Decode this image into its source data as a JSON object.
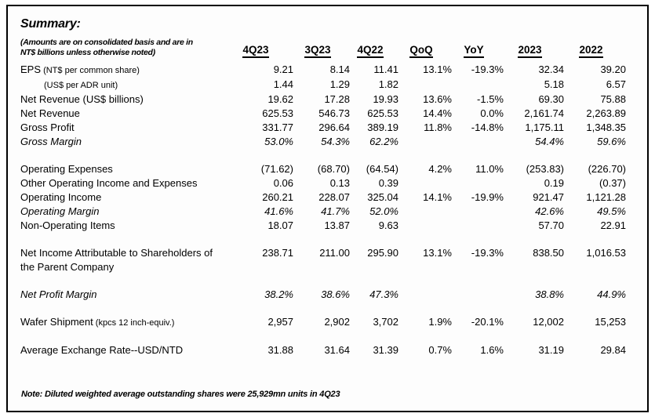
{
  "summary": {
    "title": "Summary:",
    "subtitle_line1": "(Amounts are on consolidated basis and are in",
    "subtitle_line2": "NT$ billions unless otherwise noted)"
  },
  "table": {
    "columns": [
      "4Q23",
      "3Q23",
      "4Q22",
      "QoQ",
      "YoY",
      "2023",
      "2022"
    ],
    "rows": [
      {
        "label": "EPS",
        "label_small": "(NT$ per common share)",
        "italic": false,
        "indent": false,
        "spacer_before": false,
        "values": [
          "9.21",
          "8.14",
          "11.41",
          "13.1%",
          "-19.3%",
          "32.34",
          "39.20"
        ]
      },
      {
        "label": "",
        "label_small": "(US$ per ADR unit)",
        "italic": false,
        "indent": true,
        "spacer_before": false,
        "values": [
          "1.44",
          "1.29",
          "1.82",
          "",
          "",
          "5.18",
          "6.57"
        ]
      },
      {
        "label": "Net Revenue (US$ billions)",
        "label_small": "",
        "italic": false,
        "indent": false,
        "spacer_before": false,
        "values": [
          "19.62",
          "17.28",
          "19.93",
          "13.6%",
          "-1.5%",
          "69.30",
          "75.88"
        ]
      },
      {
        "label": "Net Revenue",
        "label_small": "",
        "italic": false,
        "indent": false,
        "spacer_before": false,
        "values": [
          "625.53",
          "546.73",
          "625.53",
          "14.4%",
          "0.0%",
          "2,161.74",
          "2,263.89"
        ]
      },
      {
        "label": "Gross Profit",
        "label_small": "",
        "italic": false,
        "indent": false,
        "spacer_before": false,
        "values": [
          "331.77",
          "296.64",
          "389.19",
          "11.8%",
          "-14.8%",
          "1,175.11",
          "1,348.35"
        ]
      },
      {
        "label": "Gross Margin",
        "label_small": "",
        "italic": true,
        "indent": false,
        "spacer_before": false,
        "values": [
          "53.0%",
          "54.3%",
          "62.2%",
          "",
          "",
          "54.4%",
          "59.6%"
        ]
      },
      {
        "label": "Operating Expenses",
        "label_small": "",
        "italic": false,
        "indent": false,
        "spacer_before": true,
        "values": [
          "(71.62)",
          "(68.70)",
          "(64.54)",
          "4.2%",
          "11.0%",
          "(253.83)",
          "(226.70)"
        ]
      },
      {
        "label": "Other Operating Income and Expenses",
        "label_small": "",
        "italic": false,
        "indent": false,
        "spacer_before": false,
        "values": [
          "0.06",
          "0.13",
          "0.39",
          "",
          "",
          "0.19",
          "(0.37)"
        ]
      },
      {
        "label": "Operating Income",
        "label_small": "",
        "italic": false,
        "indent": false,
        "spacer_before": false,
        "values": [
          "260.21",
          "228.07",
          "325.04",
          "14.1%",
          "-19.9%",
          "921.47",
          "1,121.28"
        ]
      },
      {
        "label": "Operating Margin",
        "label_small": "",
        "italic": true,
        "indent": false,
        "spacer_before": false,
        "values": [
          "41.6%",
          "41.7%",
          "52.0%",
          "",
          "",
          "42.6%",
          "49.5%"
        ]
      },
      {
        "label": "Non-Operating Items",
        "label_small": "",
        "italic": false,
        "indent": false,
        "spacer_before": false,
        "values": [
          "18.07",
          "13.87",
          "9.63",
          "",
          "",
          "57.70",
          "22.91"
        ]
      },
      {
        "label": "Net Income Attributable to Shareholders of",
        "label_line2": "the Parent Company",
        "label_small": "",
        "italic": false,
        "indent": false,
        "spacer_before": true,
        "values": [
          "238.71",
          "211.00",
          "295.90",
          "13.1%",
          "-19.3%",
          "838.50",
          "1,016.53"
        ]
      },
      {
        "label": "Net Profit Margin",
        "label_small": "",
        "italic": true,
        "indent": false,
        "spacer_before": true,
        "values": [
          "38.2%",
          "38.6%",
          "47.3%",
          "",
          "",
          "38.8%",
          "44.9%"
        ]
      },
      {
        "label": "Wafer Shipment",
        "label_small": "(kpcs 12 inch-equiv.)",
        "italic": false,
        "indent": false,
        "spacer_before": true,
        "values": [
          "2,957",
          "2,902",
          "3,702",
          "1.9%",
          "-20.1%",
          "12,002",
          "15,253"
        ]
      },
      {
        "label": "Average Exchange Rate--USD/NTD",
        "label_small": "",
        "italic": false,
        "indent": false,
        "spacer_before": true,
        "values": [
          "31.88",
          "31.64",
          "31.39",
          "0.7%",
          "1.6%",
          "31.19",
          "29.84"
        ]
      }
    ]
  },
  "note": "Note: Diluted weighted average outstanding shares were 25,929mn units in 4Q23"
}
